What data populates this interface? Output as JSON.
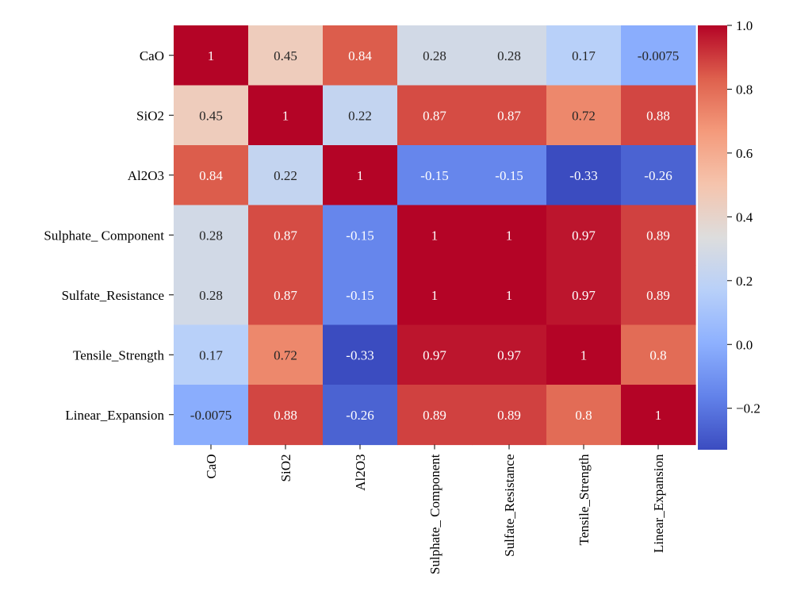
{
  "chart_data": {
    "type": "heatmap",
    "title": "",
    "xlabel": "",
    "ylabel": "",
    "rows": [
      "CaO",
      "SiO2",
      "Al2O3",
      "Sulphate_ Component",
      "Sulfate_Resistance",
      "Tensile_Strength",
      "Linear_Expansion"
    ],
    "columns": [
      "CaO",
      "SiO2",
      "Al2O3",
      "Sulphate_ Component",
      "Sulfate_Resistance",
      "Tensile_Strength",
      "Linear_Expansion"
    ],
    "values": [
      [
        1,
        0.45,
        0.84,
        0.28,
        0.28,
        0.17,
        -0.0075
      ],
      [
        0.45,
        1,
        0.22,
        0.87,
        0.87,
        0.72,
        0.88
      ],
      [
        0.84,
        0.22,
        1,
        -0.15,
        -0.15,
        -0.33,
        -0.26
      ],
      [
        0.28,
        0.87,
        -0.15,
        1,
        1,
        0.97,
        0.89
      ],
      [
        0.28,
        0.87,
        -0.15,
        1,
        1,
        0.97,
        0.89
      ],
      [
        0.17,
        0.72,
        -0.33,
        0.97,
        0.97,
        1,
        0.8
      ],
      [
        -0.0075,
        0.88,
        -0.26,
        0.89,
        0.89,
        0.8,
        1
      ]
    ],
    "value_labels": [
      [
        "1",
        "0.45",
        "0.84",
        "0.28",
        "0.28",
        "0.17",
        "-0.0075"
      ],
      [
        "0.45",
        "1",
        "0.22",
        "0.87",
        "0.87",
        "0.72",
        "0.88"
      ],
      [
        "0.84",
        "0.22",
        "1",
        "-0.15",
        "-0.15",
        "-0.33",
        "-0.26"
      ],
      [
        "0.28",
        "0.87",
        "-0.15",
        "1",
        "1",
        "0.97",
        "0.89"
      ],
      [
        "0.28",
        "0.87",
        "-0.15",
        "1",
        "1",
        "0.97",
        "0.89"
      ],
      [
        "0.17",
        "0.72",
        "-0.33",
        "0.97",
        "0.97",
        "1",
        "0.8"
      ],
      [
        "-0.0075",
        "0.88",
        "-0.26",
        "0.89",
        "0.89",
        "0.8",
        "1"
      ]
    ],
    "colormap": "coolwarm",
    "colorbar": {
      "range": [
        -0.33,
        1.0
      ],
      "ticks": [
        1.0,
        0.8,
        0.6,
        0.4,
        0.2,
        0.0,
        -0.2
      ],
      "tick_labels": [
        "1.0",
        "0.8",
        "0.6",
        "0.4",
        "0.2",
        "0.0",
        "−0.2"
      ],
      "placement": "right"
    },
    "grid": false,
    "annotated": true
  }
}
